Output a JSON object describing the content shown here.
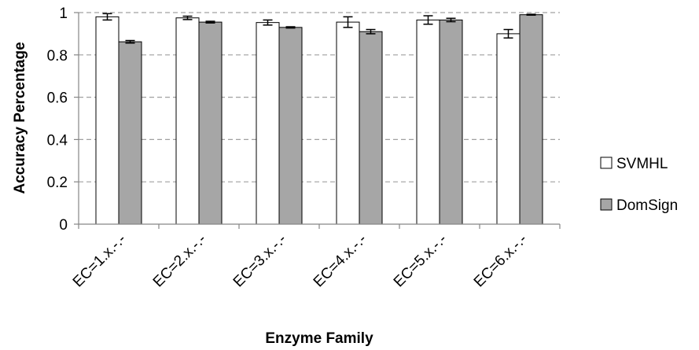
{
  "chart_data": {
    "type": "bar",
    "title": "",
    "xlabel": "Enzyme Family",
    "ylabel": "Accuracy Percentage",
    "categories": [
      "EC=1.x.-.-",
      "EC=2.x.-.-",
      "EC=3.x.-.-",
      "EC=4.x.-.-",
      "EC=5.x.-.-",
      "EC=6.x.-.-"
    ],
    "series": [
      {
        "name": "SVMHL",
        "values": [
          0.98,
          0.975,
          0.953,
          0.955,
          0.965,
          0.9
        ],
        "errors": [
          0.015,
          0.008,
          0.012,
          0.025,
          0.02,
          0.02
        ],
        "color": "#ffffff"
      },
      {
        "name": "DomSign",
        "values": [
          0.862,
          0.955,
          0.93,
          0.91,
          0.965,
          0.99
        ],
        "errors": [
          0.006,
          0.004,
          0.003,
          0.01,
          0.008,
          0.002
        ],
        "color": "#a6a6a6"
      }
    ],
    "ylim": [
      0,
      1
    ],
    "yticks": [
      "0",
      "0.2",
      "0.4",
      "0.6",
      "0.8",
      "1"
    ],
    "ytick_values": [
      0,
      0.2,
      0.4,
      0.6,
      0.8,
      1
    ],
    "grid": "horizontal dashed",
    "legend_position": "right"
  }
}
